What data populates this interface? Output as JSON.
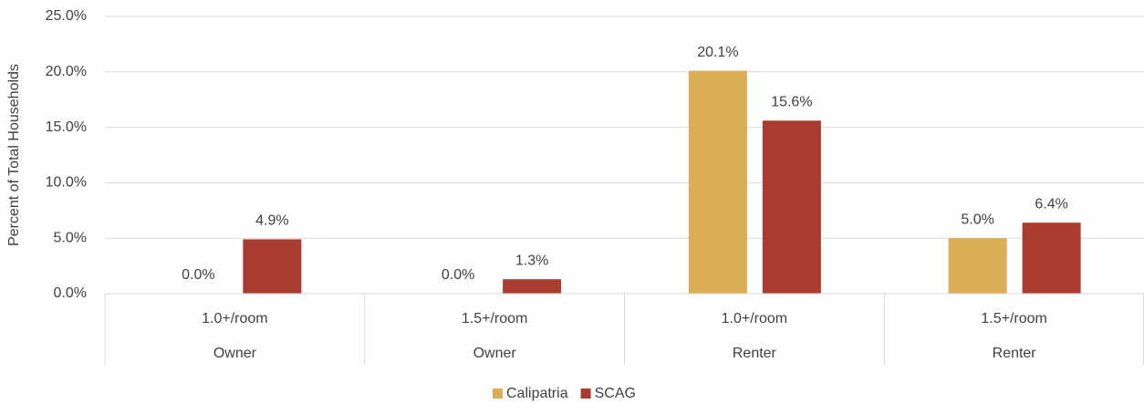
{
  "chart_data": {
    "type": "bar",
    "y_axis_label": "Percent of Total Households",
    "categories": [
      "1.0+/room",
      "1.5+/room",
      "1.0+/room",
      "1.5+/room"
    ],
    "groups": [
      "Owner",
      "Owner",
      "Renter",
      "Renter"
    ],
    "series": [
      {
        "name": "Calipatria",
        "color": "#d9ae57",
        "values": [
          0,
          0,
          20.1,
          5.0
        ],
        "value_labels": [
          "0.0%",
          "0.0%",
          "20.1%",
          "5.0%"
        ]
      },
      {
        "name": "SCAG",
        "color": "#a93b2f",
        "values": [
          4.9,
          1.3,
          15.6,
          6.4
        ],
        "value_labels": [
          "4.9%",
          "1.3%",
          "15.6%",
          "6.4%"
        ]
      }
    ],
    "ylim": [
      0,
      25
    ],
    "yticks": [
      {
        "value": 0,
        "label": "0.0%"
      },
      {
        "value": 5,
        "label": "5.0%"
      },
      {
        "value": 10,
        "label": "10.0%"
      },
      {
        "value": 15,
        "label": "15.0%"
      },
      {
        "value": 20,
        "label": "20.0%"
      },
      {
        "value": 25,
        "label": "25.0%"
      }
    ],
    "grid": true,
    "legend": "bottom"
  }
}
